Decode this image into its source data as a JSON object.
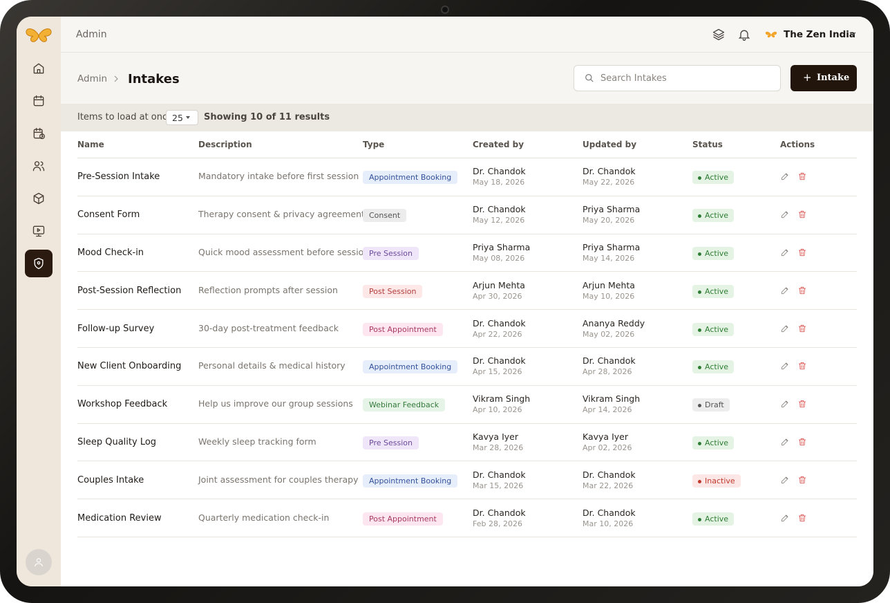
{
  "header": {
    "section": "Admin",
    "org": "The Zen India"
  },
  "breadcrumb": {
    "parent": "Admin",
    "current": "Intakes"
  },
  "search": {
    "placeholder": "Search Intakes"
  },
  "add_button": {
    "label": "Intake"
  },
  "toolbar": {
    "items_label": "Items to load at once",
    "page_size": "25",
    "showing": "Showing 10 of 11 results"
  },
  "table": {
    "columns": [
      "Name",
      "Description",
      "Type",
      "Created by",
      "Updated by",
      "Status",
      "Actions"
    ],
    "rows": [
      {
        "name": "Pre-Session Intake",
        "description": "Mandatory intake before first session",
        "type": "Appointment Booking",
        "created_by": "Dr. Chandok",
        "created_on": "May 18, 2026",
        "updated_by": "Dr. Chandok",
        "updated_on": "May 22, 2026",
        "status": "Active"
      },
      {
        "name": "Consent Form",
        "description": "Therapy consent & privacy agreement",
        "type": "Consent",
        "created_by": "Dr. Chandok",
        "created_on": "May 12, 2026",
        "updated_by": "Priya Sharma",
        "updated_on": "May 20, 2026",
        "status": "Active"
      },
      {
        "name": "Mood Check-in",
        "description": "Quick mood assessment before session",
        "type": "Pre Session",
        "created_by": "Priya Sharma",
        "created_on": "May 08, 2026",
        "updated_by": "Priya Sharma",
        "updated_on": "May 14, 2026",
        "status": "Active"
      },
      {
        "name": "Post-Session Reflection",
        "description": "Reflection prompts after session",
        "type": "Post Session",
        "created_by": "Arjun Mehta",
        "created_on": "Apr 30, 2026",
        "updated_by": "Arjun Mehta",
        "updated_on": "May 10, 2026",
        "status": "Active"
      },
      {
        "name": "Follow-up Survey",
        "description": "30-day post-treatment feedback",
        "type": "Post Appointment",
        "created_by": "Dr. Chandok",
        "created_on": "Apr 22, 2026",
        "updated_by": "Ananya Reddy",
        "updated_on": "May 02, 2026",
        "status": "Active"
      },
      {
        "name": "New Client Onboarding",
        "description": "Personal details & medical history",
        "type": "Appointment Booking",
        "created_by": "Dr. Chandok",
        "created_on": "Apr 15, 2026",
        "updated_by": "Dr. Chandok",
        "updated_on": "Apr 28, 2026",
        "status": "Active"
      },
      {
        "name": "Workshop Feedback",
        "description": "Help us improve our group sessions",
        "type": "Webinar Feedback",
        "created_by": "Vikram Singh",
        "created_on": "Apr 10, 2026",
        "updated_by": "Vikram Singh",
        "updated_on": "Apr 14, 2026",
        "status": "Draft"
      },
      {
        "name": "Sleep Quality Log",
        "description": "Weekly sleep tracking form",
        "type": "Pre Session",
        "created_by": "Kavya Iyer",
        "created_on": "Mar 28, 2026",
        "updated_by": "Kavya Iyer",
        "updated_on": "Apr 02, 2026",
        "status": "Active"
      },
      {
        "name": "Couples Intake",
        "description": "Joint assessment for couples therapy",
        "type": "Appointment Booking",
        "created_by": "Dr. Chandok",
        "created_on": "Mar 15, 2026",
        "updated_by": "Dr. Chandok",
        "updated_on": "Mar 22, 2026",
        "status": "Inactive"
      },
      {
        "name": "Medication Review",
        "description": "Quarterly medication check-in",
        "type": "Post Appointment",
        "created_by": "Dr. Chandok",
        "created_on": "Feb 28, 2026",
        "updated_by": "Dr. Chandok",
        "updated_on": "Mar 10, 2026",
        "status": "Active"
      }
    ]
  }
}
